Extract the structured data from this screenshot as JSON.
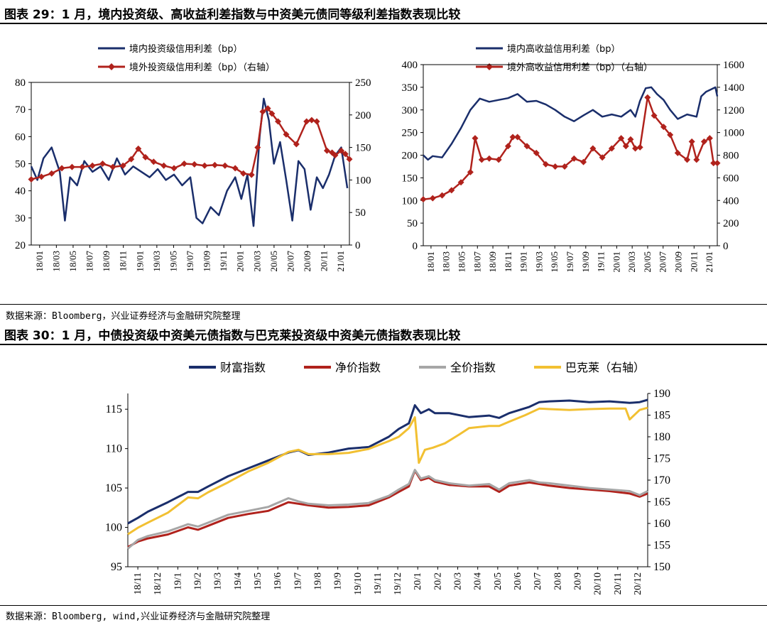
{
  "headings": {
    "fig29": "图表 29：1 月，境内投资级、高收益利差指数与中资美元债同等级利差指数表现比较",
    "fig30": "图表 30：1 月，中债投资级中资美元债指数与巴克莱投资级中资美元债指数表现比较"
  },
  "sources": {
    "fig29": "数据来源：Bloomberg，兴业证券经济与金融研究院整理",
    "fig30": "数据来源：Bloomberg, wind,兴业证券经济与金融研究院整理"
  },
  "colors": {
    "navy": "#1a2e6b",
    "red": "#b0221c",
    "gray": "#a6a6a6",
    "yellow": "#f2c032"
  },
  "chart_data": [
    {
      "type": "line",
      "x_ticks": [
        "18/01",
        "18/03",
        "18/05",
        "18/07",
        "18/09",
        "18/11",
        "19/01",
        "19/03",
        "19/05",
        "19/07",
        "19/09",
        "19/11",
        "20/01",
        "20/03",
        "20/05",
        "20/07",
        "20/09",
        "20/11",
        "21/01"
      ],
      "y_left": {
        "lim": [
          20,
          80
        ],
        "ticks": [
          "20",
          "30",
          "40",
          "50",
          "60",
          "70",
          "80"
        ]
      },
      "y_right": {
        "lim": [
          0,
          250
        ],
        "ticks": [
          "0",
          "50",
          "100",
          "150",
          "200",
          "250"
        ]
      },
      "x_range": [
        2018.0,
        2021.12
      ],
      "series": [
        {
          "name": "境内投资级信用利差（bp）",
          "axis": "left",
          "color": "navy",
          "marker": "none",
          "x": [
            2018.0,
            2018.06,
            2018.12,
            2018.2,
            2018.28,
            2018.33,
            2018.38,
            2018.45,
            2018.52,
            2018.6,
            2018.68,
            2018.76,
            2018.84,
            2018.92,
            2019.0,
            2019.08,
            2019.16,
            2019.24,
            2019.32,
            2019.4,
            2019.48,
            2019.56,
            2019.62,
            2019.68,
            2019.76,
            2019.84,
            2019.92,
            2020.0,
            2020.06,
            2020.12,
            2020.18,
            2020.24,
            2020.28,
            2020.33,
            2020.38,
            2020.44,
            2020.5,
            2020.56,
            2020.62,
            2020.68,
            2020.74,
            2020.8,
            2020.86,
            2020.92,
            2020.98,
            2021.04,
            2021.1
          ],
          "y": [
            49,
            44,
            52,
            56,
            47,
            29,
            45,
            42,
            51,
            47,
            49,
            44,
            52,
            46,
            49,
            47,
            45,
            48,
            44,
            46,
            42,
            45,
            30,
            28,
            34,
            31,
            40,
            45,
            37,
            46,
            27,
            60,
            74,
            66,
            50,
            58,
            44,
            29,
            51,
            48,
            33,
            45,
            41,
            46,
            53,
            56,
            41
          ]
        },
        {
          "name": "境外投资级信用利差（bp）（右轴）",
          "axis": "right",
          "color": "red",
          "marker": "diamond",
          "x": [
            2018.0,
            2018.1,
            2018.2,
            2018.3,
            2018.4,
            2018.5,
            2018.6,
            2018.7,
            2018.8,
            2018.9,
            2018.98,
            2019.05,
            2019.12,
            2019.2,
            2019.3,
            2019.4,
            2019.5,
            2019.6,
            2019.7,
            2019.8,
            2019.9,
            2020.0,
            2020.08,
            2020.16,
            2020.22,
            2020.27,
            2020.32,
            2020.36,
            2020.42,
            2020.5,
            2020.6,
            2020.7,
            2020.75,
            2020.8,
            2020.9,
            2020.95,
            2020.98,
            2021.04,
            2021.08,
            2021.12
          ],
          "y": [
            101,
            105,
            110,
            118,
            120,
            120,
            122,
            125,
            120,
            122,
            132,
            148,
            135,
            128,
            122,
            118,
            125,
            124,
            122,
            123,
            122,
            118,
            110,
            108,
            150,
            205,
            210,
            202,
            190,
            170,
            155,
            190,
            192,
            190,
            145,
            142,
            138,
            145,
            140,
            132
          ]
        }
      ]
    },
    {
      "type": "line",
      "x_ticks": [
        "18/01",
        "18/03",
        "18/05",
        "18/07",
        "18/09",
        "18/11",
        "19/01",
        "19/03",
        "19/05",
        "19/07",
        "19/09",
        "19/11",
        "20/01",
        "20/03",
        "20/05",
        "20/07",
        "20/09",
        "20/11",
        "21/01"
      ],
      "y_left": {
        "lim": [
          0,
          400
        ],
        "ticks": [
          "0",
          "50",
          "100",
          "150",
          "200",
          "250",
          "300",
          "350",
          "400"
        ]
      },
      "y_right": {
        "lim": [
          0,
          1600
        ],
        "ticks": [
          "0",
          "200",
          "400",
          "600",
          "800",
          "1000",
          "1200",
          "1400",
          "1600"
        ]
      },
      "x_range": [
        2018.0,
        2021.12
      ],
      "series": [
        {
          "name": "境内高收益信用利差（bp）",
          "axis": "left",
          "color": "navy",
          "marker": "none",
          "x": [
            2018.0,
            2018.05,
            2018.1,
            2018.2,
            2018.3,
            2018.4,
            2018.5,
            2018.6,
            2018.7,
            2018.8,
            2018.9,
            2019.0,
            2019.1,
            2019.2,
            2019.3,
            2019.4,
            2019.5,
            2019.6,
            2019.7,
            2019.8,
            2019.9,
            2020.0,
            2020.1,
            2020.2,
            2020.25,
            2020.3,
            2020.36,
            2020.42,
            2020.48,
            2020.55,
            2020.62,
            2020.7,
            2020.8,
            2020.9,
            2020.95,
            2021.0,
            2021.05,
            2021.1,
            2021.12
          ],
          "y": [
            200,
            190,
            198,
            195,
            225,
            260,
            300,
            325,
            318,
            322,
            326,
            335,
            318,
            320,
            312,
            300,
            285,
            275,
            288,
            300,
            285,
            290,
            285,
            300,
            285,
            320,
            348,
            350,
            335,
            322,
            300,
            280,
            290,
            285,
            330,
            340,
            345,
            350,
            330
          ]
        },
        {
          "name": "境外高收益信用利差（bp）（右轴）",
          "axis": "right",
          "color": "red",
          "marker": "diamond",
          "x": [
            2018.0,
            2018.1,
            2018.2,
            2018.3,
            2018.4,
            2018.5,
            2018.55,
            2018.62,
            2018.7,
            2018.8,
            2018.9,
            2018.95,
            2019.0,
            2019.1,
            2019.2,
            2019.3,
            2019.4,
            2019.5,
            2019.6,
            2019.7,
            2019.8,
            2019.9,
            2020.0,
            2020.1,
            2020.15,
            2020.2,
            2020.25,
            2020.3,
            2020.38,
            2020.45,
            2020.55,
            2020.62,
            2020.7,
            2020.8,
            2020.85,
            2020.9,
            2020.98,
            2021.04,
            2021.08,
            2021.12
          ],
          "y": [
            410,
            420,
            445,
            490,
            560,
            650,
            950,
            760,
            770,
            760,
            880,
            960,
            960,
            880,
            820,
            720,
            700,
            700,
            770,
            740,
            860,
            780,
            860,
            950,
            880,
            940,
            860,
            870,
            1310,
            1150,
            1050,
            980,
            820,
            760,
            920,
            760,
            920,
            950,
            730,
            730
          ]
        }
      ]
    },
    {
      "type": "line",
      "x_ticks": [
        "18/11",
        "18/12",
        "19/1",
        "19/2",
        "19/3",
        "19/4",
        "19/5",
        "19/6",
        "19/7",
        "19/8",
        "19/9",
        "19/10",
        "19/11",
        "19/12",
        "20/1",
        "20/2",
        "20/3",
        "20/4",
        "20/5",
        "20/6",
        "20/7",
        "20/8",
        "20/9",
        "20/10",
        "20/11",
        "20/12"
      ],
      "y_left": {
        "lim": [
          95,
          117
        ],
        "ticks": [
          "95",
          "100",
          "105",
          "110",
          "115"
        ]
      },
      "y_right": {
        "lim": [
          150,
          190
        ],
        "ticks": [
          "150",
          "155",
          "160",
          "165",
          "170",
          "175",
          "180",
          "185",
          "190"
        ]
      },
      "x_range": [
        0,
        25.9
      ],
      "series": [
        {
          "name": "财富指数",
          "axis": "left",
          "color": "navy",
          "x": [
            0,
            0.5,
            1,
            2,
            3,
            3.5,
            4,
            5,
            6,
            7,
            8,
            8.5,
            9,
            10,
            11,
            12,
            13,
            13.5,
            14,
            14.3,
            14.6,
            15,
            15.3,
            16,
            17,
            18,
            18.5,
            19,
            20,
            20.5,
            21,
            22,
            23,
            24,
            25,
            25.5,
            25.9
          ],
          "y": [
            100.5,
            101.2,
            102.0,
            103.2,
            104.5,
            104.5,
            105.2,
            106.5,
            107.5,
            108.5,
            109.5,
            109.8,
            109.2,
            109.5,
            110.0,
            110.2,
            111.5,
            112.5,
            113.2,
            115.5,
            114.5,
            115.0,
            114.5,
            114.5,
            114.0,
            114.2,
            113.9,
            114.5,
            115.3,
            115.9,
            116.0,
            116.1,
            115.9,
            116.0,
            115.8,
            115.9,
            116.2
          ]
        },
        {
          "name": "净价指数",
          "axis": "left",
          "color": "red",
          "x": [
            0,
            0.5,
            1,
            2,
            3,
            3.5,
            4,
            5,
            6,
            7,
            8,
            8.5,
            9,
            10,
            11,
            12,
            13,
            13.5,
            14,
            14.3,
            14.6,
            15,
            15.3,
            16,
            17,
            18,
            18.5,
            19,
            20,
            20.5,
            21,
            22,
            23,
            24,
            25,
            25.5,
            25.9
          ],
          "y": [
            97.5,
            98.2,
            98.6,
            99.1,
            100.0,
            99.7,
            100.2,
            101.2,
            101.7,
            102.1,
            103.2,
            103.0,
            102.8,
            102.5,
            102.6,
            102.8,
            103.8,
            104.5,
            105.2,
            107.2,
            106.0,
            106.3,
            105.8,
            105.4,
            105.2,
            105.2,
            104.5,
            105.3,
            105.7,
            105.5,
            105.3,
            105.0,
            104.8,
            104.6,
            104.3,
            103.9,
            104.3
          ]
        },
        {
          "name": "全价指数",
          "axis": "left",
          "color": "gray",
          "x": [
            0,
            0.5,
            1,
            2,
            3,
            3.5,
            4,
            5,
            6,
            7,
            8,
            8.5,
            9,
            10,
            11,
            12,
            13,
            13.5,
            14,
            14.3,
            14.6,
            15,
            15.3,
            16,
            17,
            18,
            18.5,
            19,
            20,
            20.5,
            21,
            22,
            23,
            24,
            25,
            25.5,
            25.9
          ],
          "y": [
            97.3,
            98.4,
            98.9,
            99.5,
            100.4,
            100.1,
            100.6,
            101.6,
            102.1,
            102.6,
            103.7,
            103.3,
            103.0,
            102.8,
            102.9,
            103.1,
            104.0,
            104.8,
            105.5,
            107.3,
            106.2,
            106.5,
            106.0,
            105.6,
            105.3,
            105.5,
            104.8,
            105.6,
            106.0,
            105.7,
            105.6,
            105.3,
            105.0,
            104.8,
            104.6,
            104.1,
            104.6
          ]
        },
        {
          "name": "巴克莱（右轴）",
          "axis": "right",
          "color": "yellow",
          "x": [
            0,
            0.5,
            1,
            2,
            3,
            3.5,
            4,
            5,
            6,
            7,
            8,
            8.5,
            9,
            10,
            11,
            12,
            13,
            13.5,
            14,
            14.3,
            14.5,
            14.8,
            15.2,
            15.8,
            16.5,
            17,
            18,
            18.5,
            19,
            19.8,
            20.5,
            21,
            22,
            23,
            24,
            24.8,
            25,
            25.5,
            25.9
          ],
          "y": [
            157.5,
            159.0,
            160.2,
            162.5,
            166.0,
            165.8,
            167.2,
            169.5,
            172.0,
            174.0,
            176.5,
            177.0,
            176.0,
            176.0,
            176.3,
            177.2,
            179.0,
            180.0,
            182.0,
            184.5,
            174.0,
            177.0,
            177.5,
            178.5,
            180.5,
            182.0,
            182.5,
            182.5,
            183.5,
            185.0,
            186.5,
            186.4,
            186.2,
            186.4,
            186.5,
            186.5,
            184.0,
            186.2,
            186.7
          ]
        }
      ]
    }
  ],
  "legends": {
    "fig29a": [
      "境内投资级信用利差（bp）",
      "境外投资级信用利差（bp）（右轴）"
    ],
    "fig29b": [
      "境内高收益信用利差（bp）",
      "境外高收益信用利差（bp）（右轴）"
    ],
    "fig30": [
      "财富指数",
      "净价指数",
      "全价指数",
      "巴克莱（右轴）"
    ]
  }
}
